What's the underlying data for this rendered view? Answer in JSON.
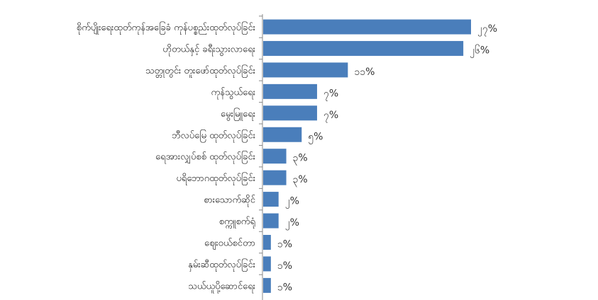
{
  "chart_data": {
    "type": "bar",
    "orientation": "horizontal",
    "categories": [
      "စိုက်ပျိုးရေးထုတ်ကုန်အခြေခံ ကုန်ပစ္စည်းထုတ်လုပ်ခြင်း",
      "ဟိုတယ်နှင့် ခရီးသွားလာရေး",
      "သတ္တုတွင်း တူးဖော်ထုတ်လုပ်ခြင်း",
      "ကုန်သွယ်ရေး",
      "မွေးမြူရေး",
      "ဘီလပ်မြေ ထုတ်လုပ်ခြင်း",
      "ရေအားလျှပ်စစ် ထုတ်လုပ်ခြင်း",
      "ပရိဘောဂထုတ်လုပ်ခြင်း",
      "စားသောက်ဆိုင်",
      "စက္ကူစက်ရုံ",
      "ဈေးဝယ်စင်တာ",
      "နှမ်းဆီထုတ်လုပ်ခြင်း",
      "သယ်ယူပို့ဆောင်ရေး"
    ],
    "values": [
      27,
      26,
      11,
      7,
      7,
      5,
      3,
      3,
      2,
      2,
      1,
      1,
      1
    ],
    "data_labels": [
      "၂၇%",
      "၂၆%",
      "၁၁%",
      "၇%",
      "၇%",
      "၅%",
      "၃%",
      "၃%",
      "၂%",
      "၂%",
      "၁%",
      "၁%",
      "၁%"
    ],
    "unit": "%",
    "xlim": [
      0,
      27
    ],
    "grid": false,
    "legend": "none",
    "bar_color": "#4a7ebb"
  }
}
